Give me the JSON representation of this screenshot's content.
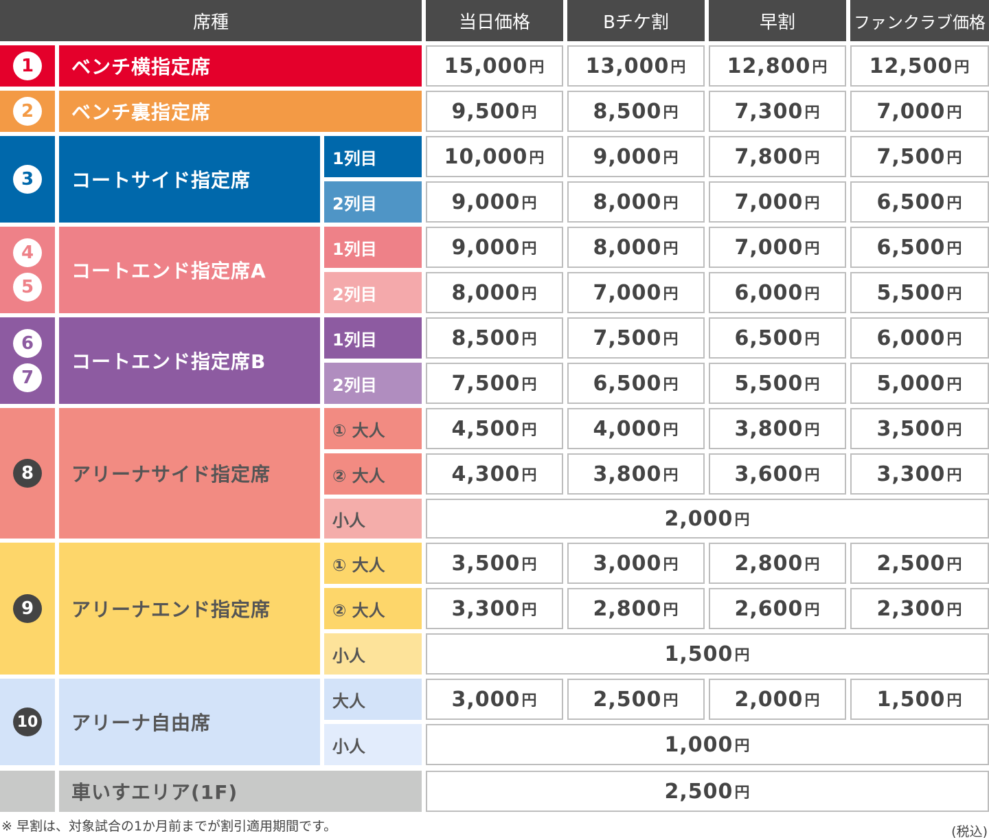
{
  "header": {
    "seat_type": "席種",
    "columns": [
      "当日価格",
      "Bチケ割",
      "早割",
      "ファンクラブ価格"
    ]
  },
  "currency": "円",
  "groups": [
    {
      "nums": [
        "1"
      ],
      "name": "ベンチ横指定席",
      "color": "#e4002b",
      "text": "#fff",
      "num_style": "light",
      "rows": [
        {
          "sub": null,
          "prices": [
            "15,000",
            "13,000",
            "12,800",
            "12,500"
          ]
        }
      ]
    },
    {
      "nums": [
        "2"
      ],
      "name": "ベンチ裏指定席",
      "color": "#f39a45",
      "text": "#fff",
      "num_style": "light",
      "rows": [
        {
          "sub": null,
          "prices": [
            "9,500",
            "8,500",
            "7,300",
            "7,000"
          ]
        }
      ]
    },
    {
      "nums": [
        "3"
      ],
      "name": "コートサイド指定席",
      "color": "#0068ab",
      "text": "#fff",
      "num_style": "light",
      "rows": [
        {
          "sub": "1列目",
          "sub_color": "#0068ab",
          "prices": [
            "10,000",
            "9,000",
            "7,800",
            "7,500"
          ]
        },
        {
          "sub": "2列目",
          "sub_color": "#4f95c6",
          "prices": [
            "9,000",
            "8,000",
            "7,000",
            "6,500"
          ]
        }
      ]
    },
    {
      "nums": [
        "4",
        "5"
      ],
      "name": "コートエンド指定席A",
      "color": "#ee8188",
      "text": "#fff",
      "num_style": "light",
      "rows": [
        {
          "sub": "1列目",
          "sub_color": "#ee8188",
          "prices": [
            "9,000",
            "8,000",
            "7,000",
            "6,500"
          ]
        },
        {
          "sub": "2列目",
          "sub_color": "#f4a9ab",
          "prices": [
            "8,000",
            "7,000",
            "6,000",
            "5,500"
          ]
        }
      ]
    },
    {
      "nums": [
        "6",
        "7"
      ],
      "name": "コートエンド指定席B",
      "color": "#8d5ba1",
      "text": "#fff",
      "num_style": "light",
      "rows": [
        {
          "sub": "1列目",
          "sub_color": "#8d5ba1",
          "prices": [
            "8,500",
            "7,500",
            "6,500",
            "6,000"
          ]
        },
        {
          "sub": "2列目",
          "sub_color": "#b08dbf",
          "prices": [
            "7,500",
            "6,500",
            "5,500",
            "5,000"
          ]
        }
      ]
    },
    {
      "nums": [
        "8"
      ],
      "name": "アリーナサイド指定席",
      "color": "#f28b82",
      "text": "#555",
      "num_style": "dark",
      "rows": [
        {
          "sub": "① 大人",
          "sub_color": "#f28b82",
          "prices": [
            "4,500",
            "4,000",
            "3,800",
            "3,500"
          ]
        },
        {
          "sub": "② 大人",
          "sub_color": "#f28b82",
          "prices": [
            "4,300",
            "3,800",
            "3,600",
            "3,300"
          ]
        },
        {
          "sub": "小人",
          "sub_color": "#f4adaa",
          "prices": [
            "2,000"
          ]
        }
      ]
    },
    {
      "nums": [
        "9"
      ],
      "name": "アリーナエンド指定席",
      "color": "#fdd66a",
      "text": "#555",
      "num_style": "dark",
      "rows": [
        {
          "sub": "① 大人",
          "sub_color": "#fdd66a",
          "prices": [
            "3,500",
            "3,000",
            "2,800",
            "2,500"
          ]
        },
        {
          "sub": "② 大人",
          "sub_color": "#fdd66a",
          "prices": [
            "3,300",
            "2,800",
            "2,600",
            "2,300"
          ]
        },
        {
          "sub": "小人",
          "sub_color": "#fde39a",
          "prices": [
            "1,500"
          ]
        }
      ]
    },
    {
      "nums": [
        "10"
      ],
      "name": "アリーナ自由席",
      "color": "#d3e3f9",
      "text": "#555",
      "num_style": "dark",
      "rows": [
        {
          "sub": "大人",
          "sub_color": "#d3e3f9",
          "prices": [
            "3,000",
            "2,500",
            "2,000",
            "1,500"
          ]
        },
        {
          "sub": "小人",
          "sub_color": "#e2ecfc",
          "prices": [
            "1,000"
          ]
        }
      ]
    },
    {
      "nums": [],
      "name": "車いすエリア(1F)",
      "color": "#c8c9c8",
      "text": "#555",
      "num_style": "dark",
      "rows": [
        {
          "sub": null,
          "prices": [
            "2,500"
          ]
        }
      ]
    }
  ],
  "footnote": "※ 早割は、対象試合の1か月前までが割引適用期間です。",
  "tax_note": "(税込)"
}
